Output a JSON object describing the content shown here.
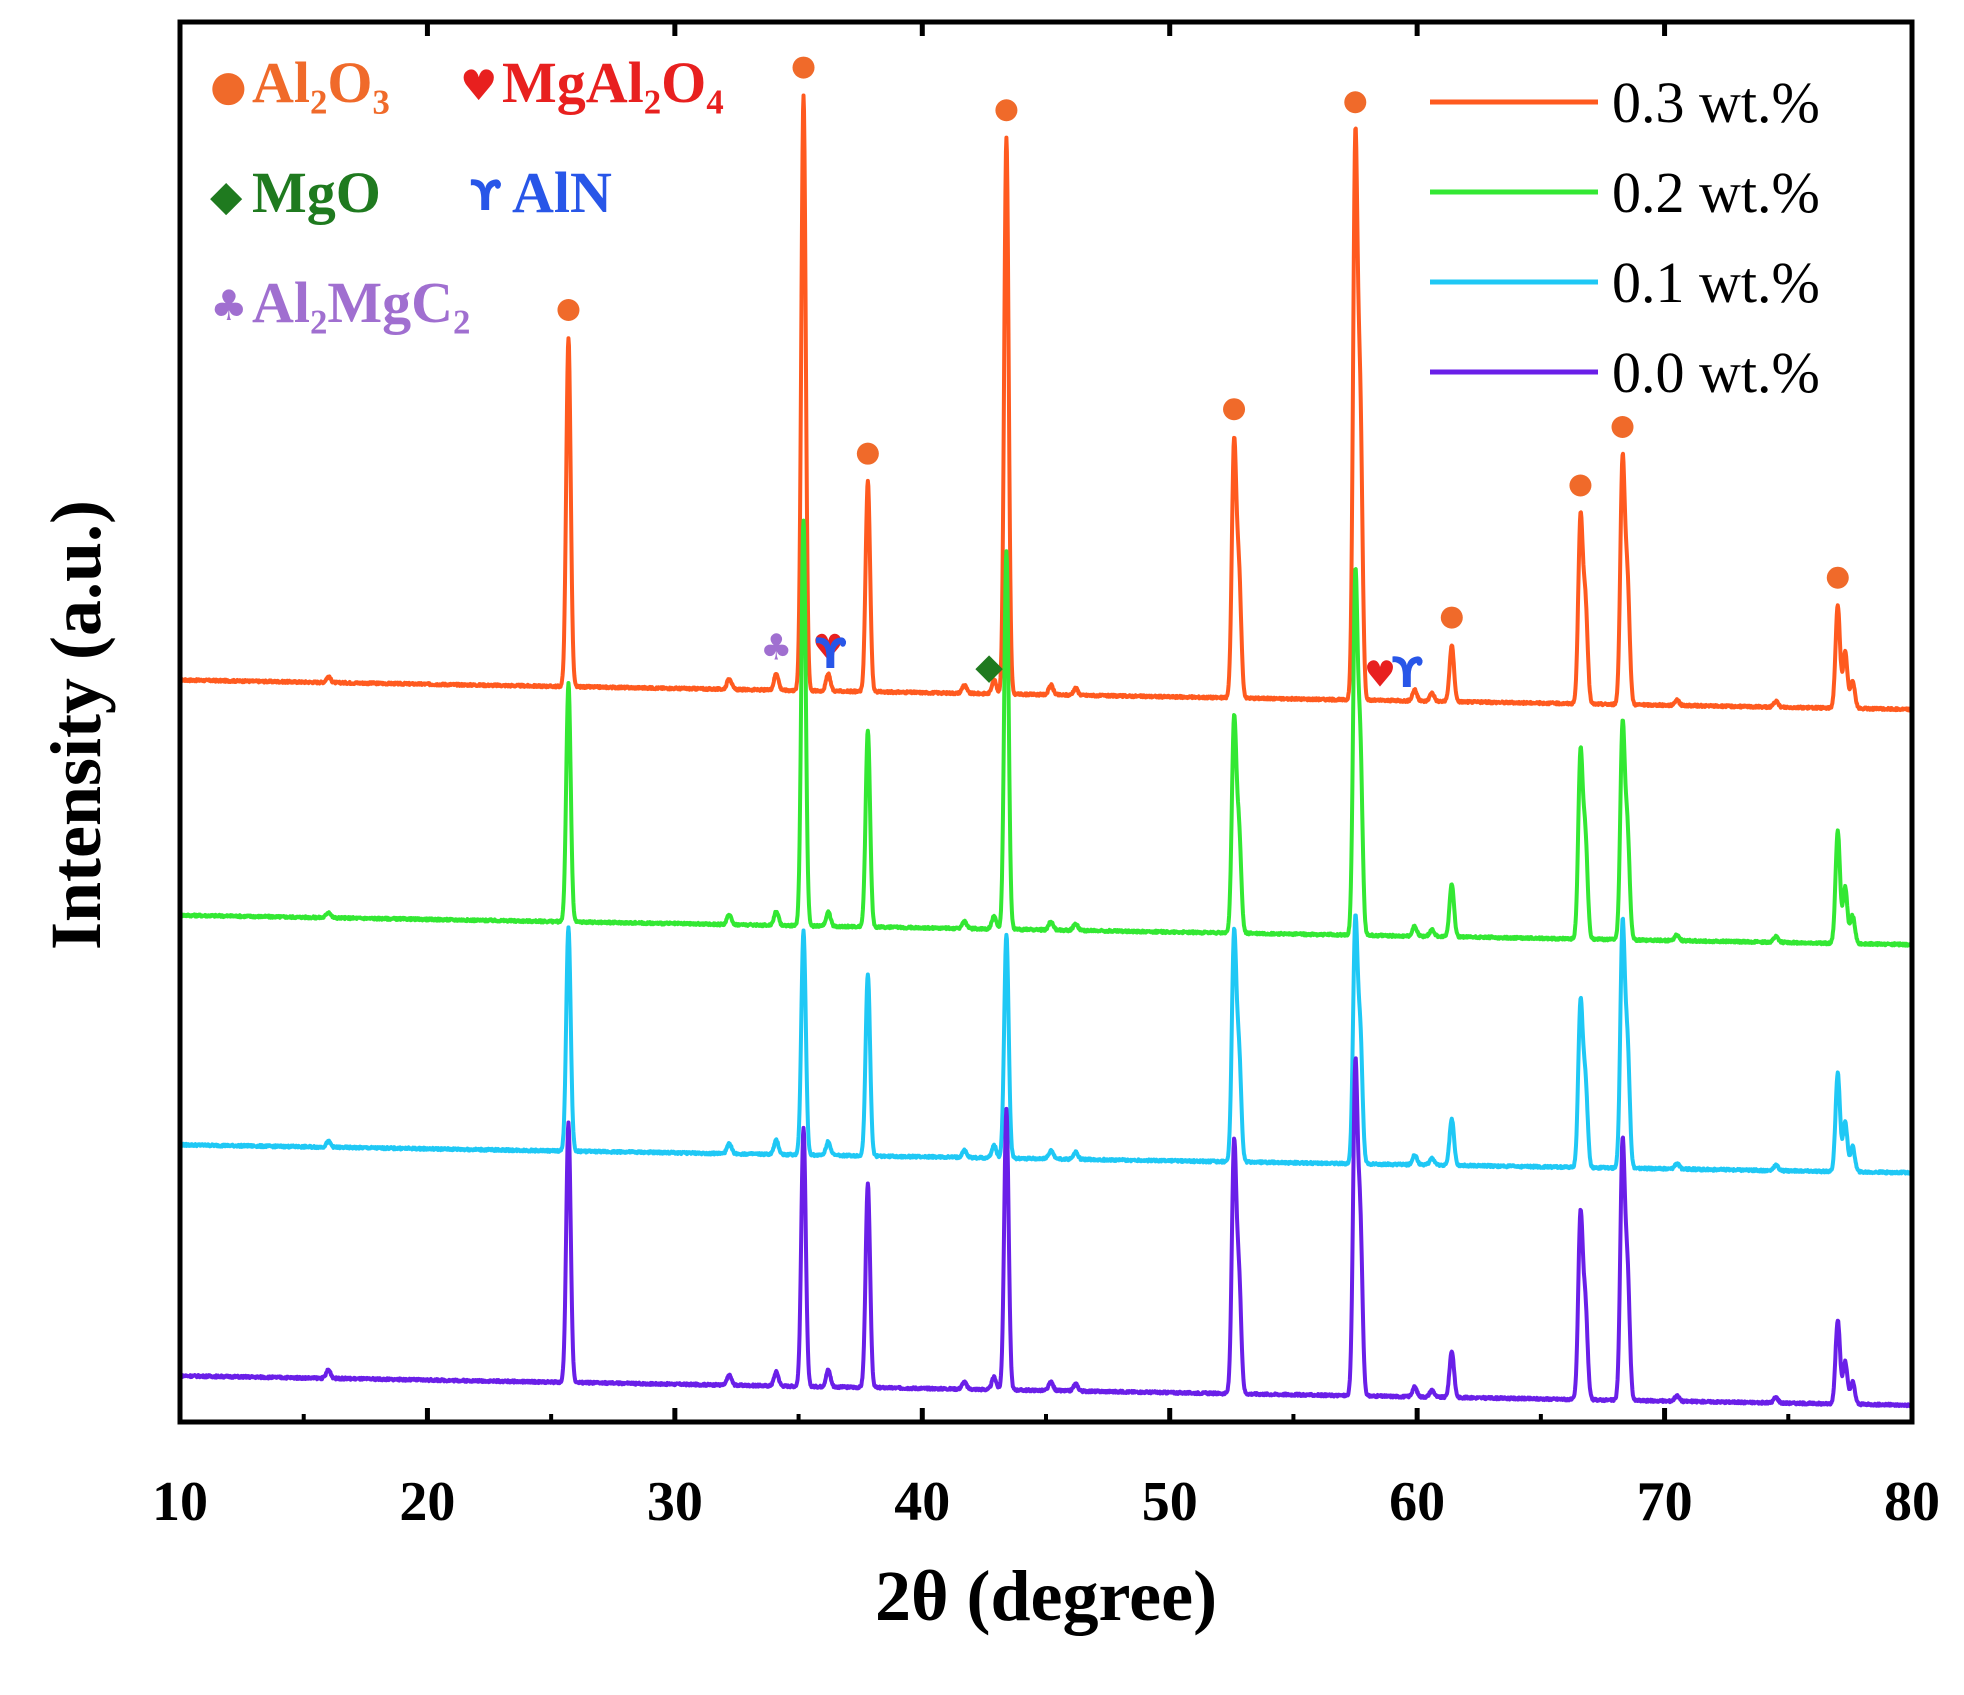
{
  "chart_data": {
    "type": "line",
    "title": "",
    "xlabel": "2θ (degree)",
    "ylabel": "Intensity (a.u.)",
    "xlim": [
      10,
      80
    ],
    "ylim": [
      0,
      1
    ],
    "xticks": [
      10,
      20,
      30,
      40,
      50,
      60,
      70,
      80
    ],
    "legend_position": "top-right",
    "series": [
      {
        "name": "0.3 wt.%",
        "color": "#ff5a1f",
        "baseline_start": 0.53,
        "baseline_end": 0.509,
        "peaks": [
          [
            16.0,
            0.004
          ],
          [
            25.7,
            0.249
          ],
          [
            32.2,
            0.008
          ],
          [
            34.1,
            0.012
          ],
          [
            35.2,
            0.425
          ],
          [
            36.2,
            0.012
          ],
          [
            37.8,
            0.15
          ],
          [
            41.7,
            0.006
          ],
          [
            42.9,
            0.01
          ],
          [
            43.4,
            0.397
          ],
          [
            45.2,
            0.007
          ],
          [
            46.2,
            0.005
          ],
          [
            52.6,
            0.179
          ],
          [
            52.8,
            0.085
          ],
          [
            57.5,
            0.39
          ],
          [
            57.7,
            0.2
          ],
          [
            59.9,
            0.008
          ],
          [
            60.6,
            0.006
          ],
          [
            61.4,
            0.04
          ],
          [
            66.6,
            0.13
          ],
          [
            66.8,
            0.07
          ],
          [
            68.3,
            0.171
          ],
          [
            68.5,
            0.085
          ],
          [
            70.5,
            0.004
          ],
          [
            74.5,
            0.004
          ],
          [
            77.0,
            0.073
          ],
          [
            77.3,
            0.04
          ],
          [
            77.6,
            0.02
          ]
        ]
      },
      {
        "name": "0.2 wt.%",
        "color": "#33e833",
        "baseline_start": 0.362,
        "baseline_end": 0.341,
        "peaks": [
          [
            16.0,
            0.004
          ],
          [
            25.7,
            0.17
          ],
          [
            32.2,
            0.007
          ],
          [
            34.1,
            0.01
          ],
          [
            35.2,
            0.29
          ],
          [
            36.2,
            0.01
          ],
          [
            37.8,
            0.14
          ],
          [
            41.7,
            0.005
          ],
          [
            42.9,
            0.009
          ],
          [
            43.4,
            0.27
          ],
          [
            45.2,
            0.006
          ],
          [
            46.2,
            0.005
          ],
          [
            52.6,
            0.15
          ],
          [
            52.8,
            0.07
          ],
          [
            57.5,
            0.25
          ],
          [
            57.7,
            0.13
          ],
          [
            59.9,
            0.007
          ],
          [
            60.6,
            0.005
          ],
          [
            61.4,
            0.038
          ],
          [
            66.6,
            0.13
          ],
          [
            66.8,
            0.07
          ],
          [
            68.3,
            0.15
          ],
          [
            68.5,
            0.075
          ],
          [
            70.5,
            0.004
          ],
          [
            74.5,
            0.004
          ],
          [
            77.0,
            0.08
          ],
          [
            77.3,
            0.04
          ],
          [
            77.6,
            0.02
          ]
        ]
      },
      {
        "name": "0.1 wt.%",
        "color": "#1fc8f5",
        "baseline_start": 0.198,
        "baseline_end": 0.178,
        "peaks": [
          [
            16.0,
            0.004
          ],
          [
            25.7,
            0.16
          ],
          [
            32.2,
            0.007
          ],
          [
            34.1,
            0.01
          ],
          [
            35.2,
            0.16
          ],
          [
            36.2,
            0.01
          ],
          [
            37.8,
            0.13
          ],
          [
            41.7,
            0.005
          ],
          [
            42.9,
            0.009
          ],
          [
            43.4,
            0.16
          ],
          [
            45.2,
            0.006
          ],
          [
            46.2,
            0.005
          ],
          [
            52.6,
            0.16
          ],
          [
            52.8,
            0.075
          ],
          [
            57.5,
            0.17
          ],
          [
            57.7,
            0.09
          ],
          [
            59.9,
            0.007
          ],
          [
            60.6,
            0.005
          ],
          [
            61.4,
            0.033
          ],
          [
            66.6,
            0.115
          ],
          [
            66.8,
            0.06
          ],
          [
            68.3,
            0.17
          ],
          [
            68.5,
            0.085
          ],
          [
            70.5,
            0.004
          ],
          [
            74.5,
            0.004
          ],
          [
            77.0,
            0.07
          ],
          [
            77.3,
            0.035
          ],
          [
            77.6,
            0.018
          ]
        ]
      },
      {
        "name": "0.0 wt.%",
        "color": "#6a1fe8",
        "baseline_start": 0.033,
        "baseline_end": 0.012,
        "peaks": [
          [
            16.0,
            0.006
          ],
          [
            25.7,
            0.185
          ],
          [
            32.2,
            0.007
          ],
          [
            34.1,
            0.01
          ],
          [
            35.2,
            0.185
          ],
          [
            36.2,
            0.012
          ],
          [
            37.8,
            0.145
          ],
          [
            41.7,
            0.005
          ],
          [
            42.9,
            0.009
          ],
          [
            43.4,
            0.2
          ],
          [
            45.2,
            0.006
          ],
          [
            46.2,
            0.005
          ],
          [
            52.6,
            0.175
          ],
          [
            52.8,
            0.08
          ],
          [
            57.5,
            0.23
          ],
          [
            57.7,
            0.12
          ],
          [
            59.9,
            0.007
          ],
          [
            60.6,
            0.005
          ],
          [
            61.4,
            0.033
          ],
          [
            66.6,
            0.13
          ],
          [
            66.8,
            0.065
          ],
          [
            68.3,
            0.18
          ],
          [
            68.5,
            0.09
          ],
          [
            70.5,
            0.004
          ],
          [
            74.5,
            0.004
          ],
          [
            77.0,
            0.06
          ],
          [
            77.3,
            0.03
          ],
          [
            77.6,
            0.016
          ]
        ]
      }
    ],
    "phase_legend": [
      {
        "symbol": "●",
        "label": "Al₂O₃",
        "color": "#f06a2a"
      },
      {
        "symbol": "♥",
        "label": "MgAl₂O₄",
        "color": "#e8201f"
      },
      {
        "symbol": "◆",
        "label": "MgO",
        "color": "#1f7a1f"
      },
      {
        "symbol": "ϒ",
        "label": "AlN",
        "color": "#2856e8"
      },
      {
        "symbol": "♣",
        "label": "Al₂MgC₂",
        "color": "#a06fd0"
      }
    ],
    "annotations": [
      {
        "phase": "Al₂O₃",
        "symbol": "●",
        "x": [
          25.7,
          35.2,
          37.8,
          43.4,
          52.6,
          57.5,
          61.4,
          66.6,
          68.3,
          77.0
        ]
      },
      {
        "phase": "MgAl₂O₄",
        "symbol": "♥",
        "x": [
          36.2,
          58.5
        ]
      },
      {
        "phase": "AlN",
        "symbol": "ϒ",
        "x": [
          36.3,
          59.6
        ]
      },
      {
        "phase": "MgO",
        "symbol": "◆",
        "x": [
          42.7
        ]
      },
      {
        "phase": "Al₂MgC₂",
        "symbol": "♣",
        "x": [
          34.1
        ]
      }
    ]
  }
}
